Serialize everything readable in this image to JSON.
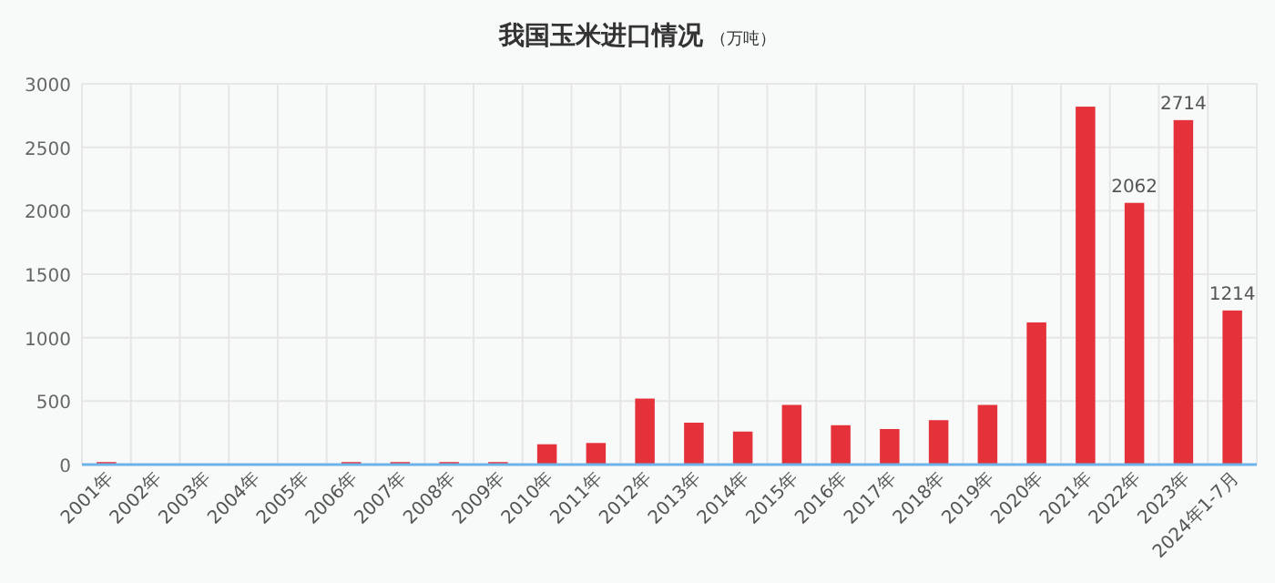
{
  "chart_data": {
    "type": "bar",
    "title": "我国玉米进口情况",
    "subtitle": "（万吨）",
    "categories": [
      "2001年",
      "2002年",
      "2003年",
      "2004年",
      "2005年",
      "2006年",
      "2007年",
      "2008年",
      "2009年",
      "2010年",
      "2011年",
      "2012年",
      "2013年",
      "2014年",
      "2015年",
      "2016年",
      "2017年",
      "2018年",
      "2019年",
      "2020年",
      "2021年",
      "2022年",
      "2023年",
      "2024年1-7月"
    ],
    "values": [
      20,
      0,
      0,
      0,
      0,
      20,
      20,
      20,
      20,
      160,
      170,
      520,
      330,
      260,
      470,
      310,
      280,
      350,
      470,
      1120,
      2820,
      2062,
      2714,
      1214
    ],
    "value_labels": [
      null,
      null,
      null,
      null,
      null,
      null,
      null,
      null,
      null,
      null,
      null,
      null,
      null,
      null,
      null,
      null,
      null,
      null,
      null,
      null,
      null,
      "2062",
      "2714",
      "1214"
    ],
    "color": "#e5323a",
    "ylim": [
      0,
      3000
    ],
    "yticks": [
      0,
      500,
      1000,
      1500,
      2000,
      2500,
      3000
    ],
    "grid": true
  }
}
